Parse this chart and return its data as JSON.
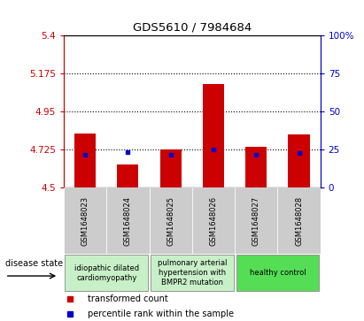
{
  "title": "GDS5610 / 7984684",
  "samples": [
    "GSM1648023",
    "GSM1648024",
    "GSM1648025",
    "GSM1648026",
    "GSM1648027",
    "GSM1648028"
  ],
  "red_values": [
    4.82,
    4.64,
    4.725,
    5.11,
    4.74,
    4.815
  ],
  "blue_values": [
    4.695,
    4.71,
    4.695,
    4.725,
    4.695,
    4.705
  ],
  "ymin": 4.5,
  "ymax": 5.4,
  "yticks": [
    4.5,
    4.725,
    4.95,
    5.175,
    5.4
  ],
  "ytick_labels": [
    "4.5",
    "4.725",
    "4.95",
    "5.175",
    "5.4"
  ],
  "y2ticks": [
    0,
    25,
    50,
    75,
    100
  ],
  "y2tick_labels": [
    "0",
    "25",
    "50",
    "75",
    "100%"
  ],
  "dotted_lines": [
    4.725,
    4.95,
    5.175
  ],
  "groups": [
    {
      "label": "idiopathic dilated\ncardiomyopathy",
      "start": 0,
      "end": 1,
      "color": "#c8f0c8"
    },
    {
      "label": "pulmonary arterial\nhypertension with\nBMPR2 mutation",
      "start": 2,
      "end": 3,
      "color": "#c8f0c8"
    },
    {
      "label": "healthy control",
      "start": 4,
      "end": 5,
      "color": "#55dd55"
    }
  ],
  "bar_color": "#cc0000",
  "dot_color": "#0000cc",
  "bar_width": 0.5,
  "ylabel_color": "#cc0000",
  "y2label_color": "#0000cc",
  "bg_color": "#ffffff",
  "disease_state_label": "disease state",
  "legend_items": [
    {
      "label": "transformed count",
      "color": "#cc0000"
    },
    {
      "label": "percentile rank within the sample",
      "color": "#0000cc"
    }
  ]
}
